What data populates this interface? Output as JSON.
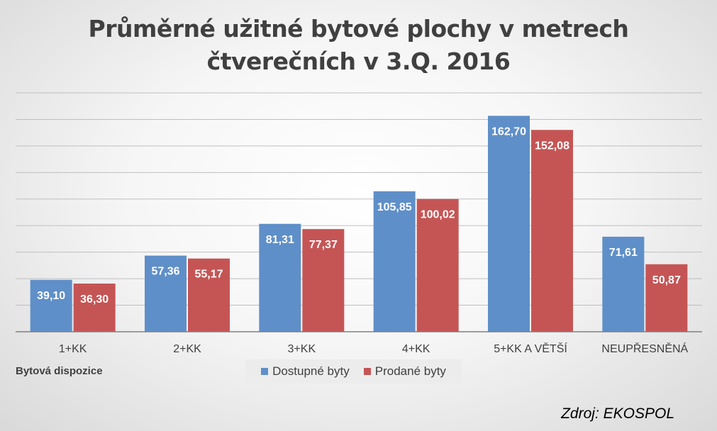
{
  "chart_data": {
    "type": "bar",
    "title_lines": [
      "Průměrné užitné bytové plochy v metrech",
      "čtverečních v 3.Q. 2016"
    ],
    "xlabel": "Bytová dispozice",
    "categories": [
      "1+KK",
      "2+KK",
      "3+KK",
      "4+KK",
      "5+KK A VĚTŠÍ",
      "NEUPŘESNĚNÁ"
    ],
    "series": [
      {
        "name": "Dostupné byty",
        "color": "#5f8fc8",
        "values": [
          39.1,
          57.36,
          81.31,
          105.85,
          162.7,
          71.61
        ],
        "labels": [
          "39,10",
          "57,36",
          "81,31",
          "105,85",
          "162,70",
          "71,61"
        ]
      },
      {
        "name": "Prodané byty",
        "color": "#c55555",
        "values": [
          36.3,
          55.17,
          77.37,
          100.02,
          152.08,
          50.87
        ],
        "labels": [
          "36,30",
          "55,17",
          "77,37",
          "100,02",
          "152,08",
          "50,87"
        ]
      }
    ],
    "ylim": [
      0,
      180
    ],
    "grid": true,
    "legend": "bottom-center"
  },
  "source": "Zdroj: EKOSPOL"
}
